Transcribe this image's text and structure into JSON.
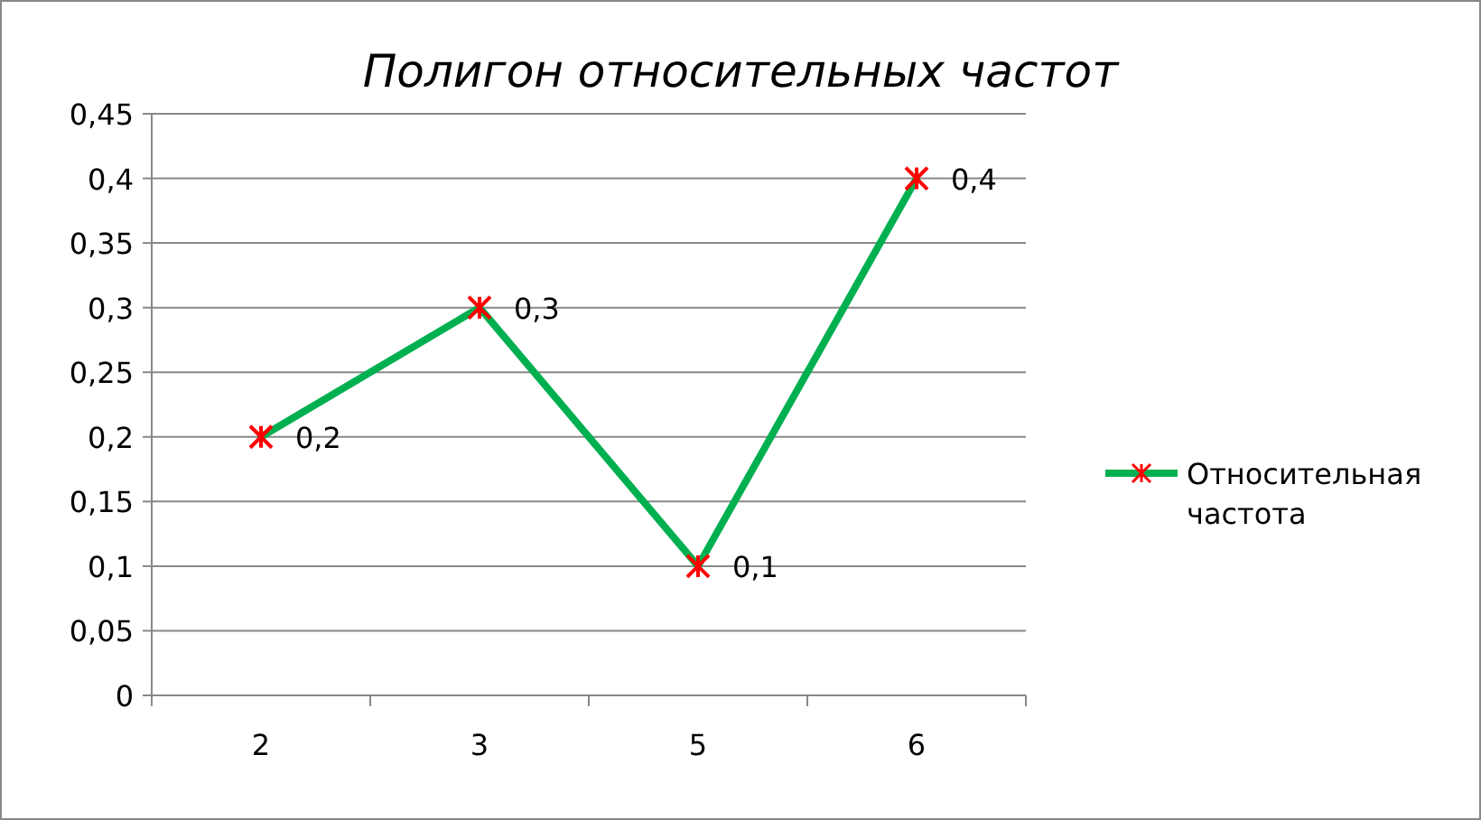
{
  "chart_data": {
    "type": "line",
    "title": "Полигон относительных частот",
    "categories": [
      "2",
      "3",
      "5",
      "6"
    ],
    "series": [
      {
        "name": "Относительная частота",
        "color": "#00b050",
        "colors": [
          "#ff0000",
          "#ff0000",
          "#ff0000",
          "#ff0000"
        ],
        "values": [
          0.2,
          0.3,
          0.1,
          0.4
        ],
        "value_labels": [
          "0,2",
          "0,3",
          "0,1",
          "0,4"
        ]
      }
    ],
    "ylim": [
      0,
      0.45
    ],
    "yticks": [
      {
        "value": 0,
        "label": "0"
      },
      {
        "value": 0.05,
        "label": "0,05"
      },
      {
        "value": 0.1,
        "label": "0,1"
      },
      {
        "value": 0.15,
        "label": "0,15"
      },
      {
        "value": 0.2,
        "label": "0,2"
      },
      {
        "value": 0.25,
        "label": "0,25"
      },
      {
        "value": 0.3,
        "label": "0,3"
      },
      {
        "value": 0.35,
        "label": "0,35"
      },
      {
        "value": 0.4,
        "label": "0,4"
      },
      {
        "value": 0.45,
        "label": "0,45"
      }
    ],
    "grid": "y",
    "legend": "right",
    "marker": "cross",
    "line_style": "solid"
  }
}
